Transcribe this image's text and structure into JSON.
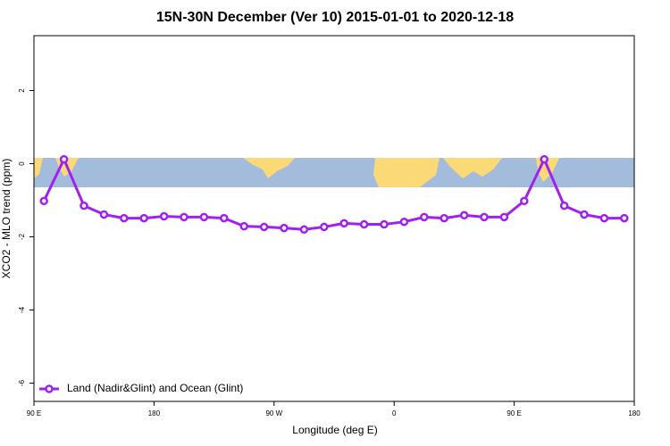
{
  "chart_data": {
    "type": "line",
    "title": "15N-30N December (Ver 10)   2015-01-01 to 2020-12-18",
    "x_label": "Longitude (deg E)",
    "y_label": "XCO2 - MLO trend (ppm)",
    "xlim": [
      90,
      540
    ],
    "xticks": [
      {
        "value": 90,
        "label": "90 E"
      },
      {
        "value": 180,
        "label": "180"
      },
      {
        "value": 270,
        "label": "90 W"
      },
      {
        "value": 360,
        "label": "0"
      },
      {
        "value": 450,
        "label": "90 E"
      },
      {
        "value": 540,
        "label": "180"
      }
    ],
    "ylim": [
      -6.5,
      3.5
    ],
    "yticks": [
      -6,
      -4,
      -2,
      0,
      2
    ],
    "legend": "bottom-left",
    "series": [
      {
        "name": "Land (Nadir&Glint) and Ocean (Glint)",
        "color": "#a020f0",
        "x": [
          97.5,
          112.5,
          127.5,
          142.5,
          157.5,
          172.5,
          187.5,
          202.5,
          217.5,
          232.5,
          247.5,
          262.5,
          277.5,
          292.5,
          307.5,
          322.5,
          337.5,
          352.5,
          367.5,
          382.5,
          397.5,
          412.5,
          427.5,
          442.5,
          457.5,
          472.5,
          487.5,
          502.5,
          517.5,
          532.5
        ],
        "values": [
          -1.02,
          0.12,
          -1.15,
          -1.39,
          -1.49,
          -1.49,
          -1.44,
          -1.46,
          -1.46,
          -1.49,
          -1.71,
          -1.73,
          -1.76,
          -1.8,
          -1.73,
          -1.63,
          -1.66,
          -1.66,
          -1.59,
          -1.46,
          -1.49,
          -1.41,
          -1.46,
          -1.46,
          -1.02,
          0.12,
          -1.15,
          -1.39,
          -1.49,
          -1.49
        ]
      }
    ]
  }
}
